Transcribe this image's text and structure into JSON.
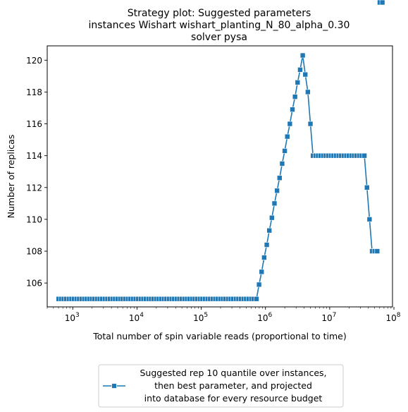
{
  "chart_data": {
    "type": "line",
    "title": [
      "Strategy plot: Suggested parameters",
      "instances Wishart wishart_planting_N_80_alpha_0.30",
      "solver pysa"
    ],
    "xlabel": "Total number of spin variable reads (proportional to time)",
    "ylabel": "Number of replicas",
    "xscale": "log",
    "xlim": [
      400,
      95000000
    ],
    "ylim": [
      104.5,
      120.9
    ],
    "x_ticks": [
      {
        "value": 1000,
        "base": "10",
        "exp": "3"
      },
      {
        "value": 10000,
        "base": "10",
        "exp": "4"
      },
      {
        "value": 100000,
        "base": "10",
        "exp": "5"
      },
      {
        "value": 1000000,
        "base": "10",
        "exp": "6"
      },
      {
        "value": 10000000,
        "base": "10",
        "exp": "7"
      },
      {
        "value": 100000000,
        "base": "10",
        "exp": "8"
      }
    ],
    "y_ticks": [
      "106",
      "108",
      "110",
      "112",
      "114",
      "116",
      "118",
      "120"
    ],
    "grid": false,
    "legend_position": "bottom-center",
    "legend_label": [
      "Suggested rep 10 quantile over instances,",
      "then best parameter, and projected",
      "into database for every resource budget"
    ],
    "colors": {
      "series": "#1f77b4",
      "axis": "#000000"
    },
    "marker": "square",
    "series": [
      {
        "logx": [
          2.78,
          2.82,
          2.86,
          2.9,
          2.94,
          2.98,
          3.02,
          3.06,
          3.1,
          3.14,
          3.18,
          3.22,
          3.26,
          3.3,
          3.34,
          3.38,
          3.42,
          3.46,
          3.5,
          3.54,
          3.58,
          3.62,
          3.66,
          3.7,
          3.74,
          3.78,
          3.82,
          3.86,
          3.9,
          3.94,
          3.98,
          4.02,
          4.06,
          4.1,
          4.14,
          4.18,
          4.22,
          4.26,
          4.3,
          4.34,
          4.38,
          4.42,
          4.46,
          4.5,
          4.54,
          4.58,
          4.62,
          4.66,
          4.7,
          4.74,
          4.78,
          4.82,
          4.86,
          4.9,
          4.94,
          4.98,
          5.02,
          5.06,
          5.1,
          5.14,
          5.18,
          5.22,
          5.26,
          5.3,
          5.34,
          5.38,
          5.42,
          5.46,
          5.5,
          5.54,
          5.58,
          5.62,
          5.66,
          5.7,
          5.74,
          5.78,
          5.82,
          5.86,
          5.9,
          5.94,
          5.98,
          6.02,
          6.06,
          6.1,
          6.14,
          6.18,
          6.22,
          6.26,
          6.3,
          6.34,
          6.38,
          6.42,
          6.46,
          6.5,
          6.54,
          6.58,
          6.62,
          6.66,
          6.7,
          6.74,
          6.78,
          6.82,
          6.86,
          6.9,
          6.94,
          6.98,
          7.02,
          7.06,
          7.1,
          7.14,
          7.18,
          7.22,
          7.26,
          7.3,
          7.34,
          7.38,
          7.42,
          7.46,
          7.5,
          7.54,
          7.58,
          7.62,
          7.66,
          7.7,
          7.74,
          7.78,
          7.82
        ],
        "values": [
          105,
          105,
          105,
          105,
          105,
          105,
          105,
          105,
          105,
          105,
          105,
          105,
          105,
          105,
          105,
          105,
          105,
          105,
          105,
          105,
          105,
          105,
          105,
          105,
          105,
          105,
          105,
          105,
          105,
          105,
          105,
          105,
          105,
          105,
          105,
          105,
          105,
          105,
          105,
          105,
          105,
          105,
          105,
          105,
          105,
          105,
          105,
          105,
          105,
          105,
          105,
          105,
          105,
          105,
          105,
          105,
          105,
          105,
          105,
          105,
          105,
          105,
          105,
          105,
          105,
          105,
          105,
          105,
          105,
          105,
          105,
          105,
          105,
          105,
          105,
          105,
          105,
          105,
          105.9,
          106.7,
          107.6,
          108.4,
          109.3,
          110.1,
          111.0,
          111.8,
          112.6,
          113.5,
          114.3,
          115.2,
          116.0,
          116.9,
          117.7,
          118.6,
          119.4,
          120.3,
          119.1,
          118.0,
          116.0,
          114.0,
          114.0,
          114.0,
          114.0,
          114.0,
          114.0,
          114.0,
          114.0,
          114.0,
          114.0,
          114.0,
          114.0,
          114.0,
          114.0,
          114.0,
          114.0,
          114.0,
          114.0,
          114.0,
          114.0,
          114.0,
          112.0,
          110.0,
          108.0,
          108.0,
          108.0
        ]
      }
    ]
  }
}
